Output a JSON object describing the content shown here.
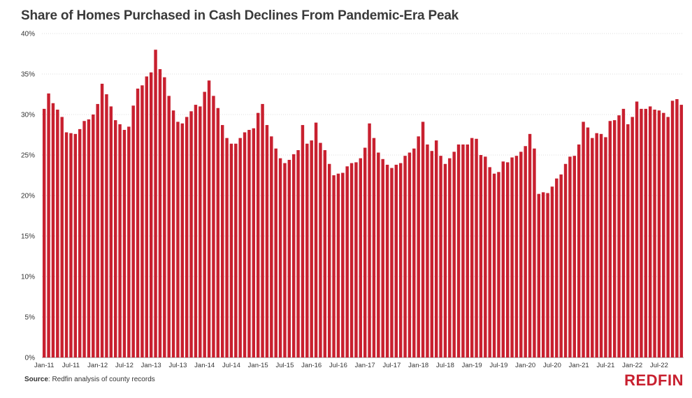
{
  "chart_data": {
    "type": "bar",
    "title": "Share of Homes Purchased in Cash Declines From Pandemic-Era Peak",
    "xlabel": "",
    "ylabel": "",
    "ylim": [
      0,
      40
    ],
    "y_ticks": [
      "0%",
      "5%",
      "10%",
      "15%",
      "20%",
      "25%",
      "30%",
      "35%",
      "40%"
    ],
    "x_tick_labels": [
      "Jan-11",
      "Jul-11",
      "Jan-12",
      "Jul-12",
      "Jan-13",
      "Jul-13",
      "Jan-14",
      "Jul-14",
      "Jan-15",
      "Jul-15",
      "Jan-16",
      "Jul-16",
      "Jan-17",
      "Jul-17",
      "Jan-18",
      "Jul-18",
      "Jan-19",
      "Jul-19",
      "Jan-20",
      "Jul-20",
      "Jan-21",
      "Jul-21",
      "Jan-22",
      "Jul-22"
    ],
    "bar_color": "#c8202f",
    "series": [
      {
        "name": "Share of homes purchased in cash (%)",
        "values": [
          30.7,
          32.6,
          31.4,
          30.6,
          29.7,
          27.8,
          27.7,
          27.6,
          28.2,
          29.2,
          29.4,
          30.0,
          31.3,
          33.8,
          32.5,
          31.0,
          29.3,
          28.8,
          28.1,
          28.5,
          31.1,
          33.2,
          33.6,
          34.7,
          35.2,
          38.0,
          35.6,
          34.6,
          32.3,
          30.5,
          29.1,
          28.9,
          29.7,
          30.4,
          31.2,
          31.0,
          32.8,
          34.2,
          32.3,
          30.8,
          28.7,
          27.1,
          26.4,
          26.4,
          27.1,
          27.8,
          28.1,
          28.3,
          30.2,
          31.3,
          28.7,
          27.3,
          25.8,
          24.6,
          24.0,
          24.4,
          25.1,
          25.6,
          28.7,
          26.4,
          26.8,
          29.0,
          26.5,
          25.6,
          23.9,
          22.5,
          22.7,
          22.8,
          23.6,
          24.0,
          24.1,
          24.6,
          25.9,
          28.9,
          27.1,
          25.3,
          24.5,
          23.8,
          23.4,
          23.8,
          24.0,
          24.9,
          25.3,
          25.8,
          27.3,
          29.1,
          26.3,
          25.5,
          26.8,
          24.9,
          23.9,
          24.6,
          25.4,
          26.3,
          26.3,
          26.3,
          27.1,
          27.0,
          25.0,
          24.8,
          23.5,
          22.7,
          22.9,
          24.2,
          24.1,
          24.7,
          24.9,
          25.4,
          26.1,
          27.6,
          25.8,
          20.2,
          20.4,
          20.3,
          21.1,
          22.1,
          22.6,
          23.9,
          24.8,
          24.9,
          26.3,
          29.1,
          28.4,
          27.1,
          27.7,
          27.6,
          27.2,
          29.2,
          29.3,
          29.9,
          30.7,
          28.8,
          29.7,
          31.6,
          30.7,
          30.7,
          31.0,
          30.6,
          30.5,
          30.2,
          29.7,
          31.7,
          31.9,
          31.2
        ]
      }
    ]
  },
  "footer": {
    "source_label": "Source",
    "source_text": ": Redfin analysis of county records",
    "logo_text": "REDFIN"
  }
}
